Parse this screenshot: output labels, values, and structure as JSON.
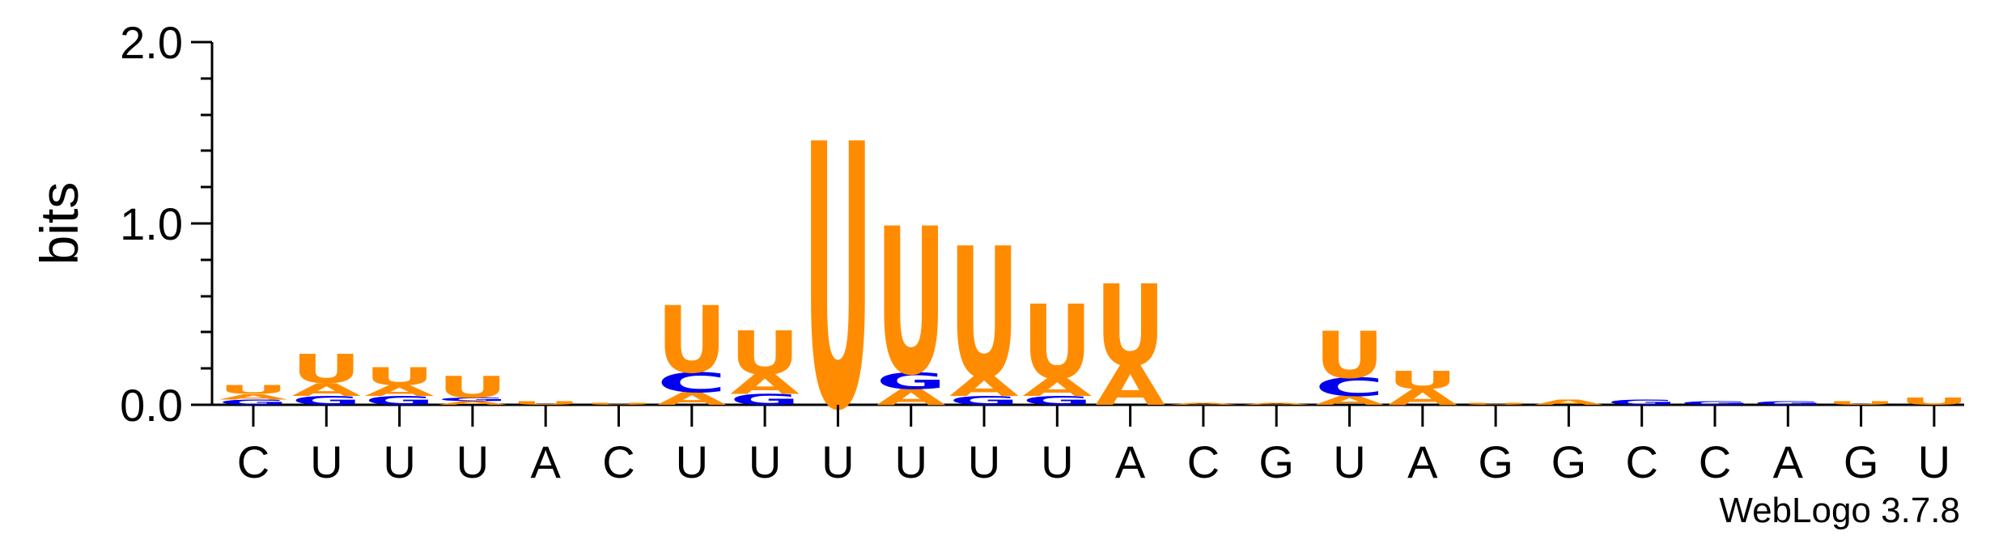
{
  "chart_data": {
    "type": "sequence-logo",
    "ylabel": "bits",
    "ylim": [
      0,
      2.0
    ],
    "y_ticks": [
      "0.0",
      "1.0",
      "2.0"
    ],
    "x_ticks": [
      "C",
      "U",
      "U",
      "U",
      "A",
      "C",
      "U",
      "U",
      "U",
      "U",
      "U",
      "U",
      "A",
      "C",
      "G",
      "U",
      "A",
      "G",
      "G",
      "C",
      "C",
      "A",
      "G",
      "U"
    ],
    "footer": "WebLogo 3.7.8",
    "colors": {
      "U": "#ff8c00",
      "A": "#ff8c00",
      "C": "#0000ee",
      "G": "#0000ee",
      "G_dark": "#ff00ff"
    },
    "columns": [
      [
        {
          "l": "G",
          "h": 0.03
        },
        {
          "l": "A",
          "h": 0.03
        },
        {
          "l": "U",
          "h": 0.05
        }
      ],
      [
        {
          "l": "G",
          "h": 0.05
        },
        {
          "l": "A",
          "h": 0.07
        },
        {
          "l": "U",
          "h": 0.16
        }
      ],
      [
        {
          "l": "G",
          "h": 0.05
        },
        {
          "l": "A",
          "h": 0.06
        },
        {
          "l": "U",
          "h": 0.1
        }
      ],
      [
        {
          "l": "A",
          "h": 0.02
        },
        {
          "l": "G",
          "h": 0.02
        },
        {
          "l": "U",
          "h": 0.12
        }
      ],
      [
        {
          "l": "U",
          "h": 0.02
        }
      ],
      [
        {
          "l": "U",
          "h": 0.01
        }
      ],
      [
        {
          "l": "A",
          "h": 0.07
        },
        {
          "l": "C",
          "h": 0.11
        },
        {
          "l": "U",
          "h": 0.37
        }
      ],
      [
        {
          "l": "G",
          "h": 0.06
        },
        {
          "l": "A",
          "h": 0.11
        },
        {
          "l": "U",
          "h": 0.24
        }
      ],
      [
        {
          "l": "U",
          "h": 1.46
        }
      ],
      [
        {
          "l": "A",
          "h": 0.09
        },
        {
          "l": "G",
          "h": 0.09
        },
        {
          "l": "U",
          "h": 0.81
        }
      ],
      [
        {
          "l": "G",
          "h": 0.05
        },
        {
          "l": "A",
          "h": 0.11
        },
        {
          "l": "U",
          "h": 0.72
        }
      ],
      [
        {
          "l": "G",
          "h": 0.05
        },
        {
          "l": "A",
          "h": 0.1
        },
        {
          "l": "U",
          "h": 0.41
        }
      ],
      [
        {
          "l": "A",
          "h": 0.22
        },
        {
          "l": "U",
          "h": 0.45
        }
      ],
      [
        {
          "l": "A",
          "h": 0.01
        }
      ],
      [
        {
          "l": "A",
          "h": 0.01
        }
      ],
      [
        {
          "l": "A",
          "h": 0.05
        },
        {
          "l": "C",
          "h": 0.1
        },
        {
          "l": "U",
          "h": 0.26
        }
      ],
      [
        {
          "l": "A",
          "h": 0.09
        },
        {
          "l": "U",
          "h": 0.1
        }
      ],
      [
        {
          "l": "U",
          "h": 0.01
        }
      ],
      [
        {
          "l": "A",
          "h": 0.03
        }
      ],
      [
        {
          "l": "G",
          "h": 0.03
        }
      ],
      [
        {
          "l": "G",
          "h": 0.02
        }
      ],
      [
        {
          "l": "G",
          "h": 0.02
        }
      ],
      [
        {
          "l": "U",
          "h": 0.02
        }
      ],
      [
        {
          "l": "U",
          "h": 0.04
        }
      ]
    ]
  }
}
